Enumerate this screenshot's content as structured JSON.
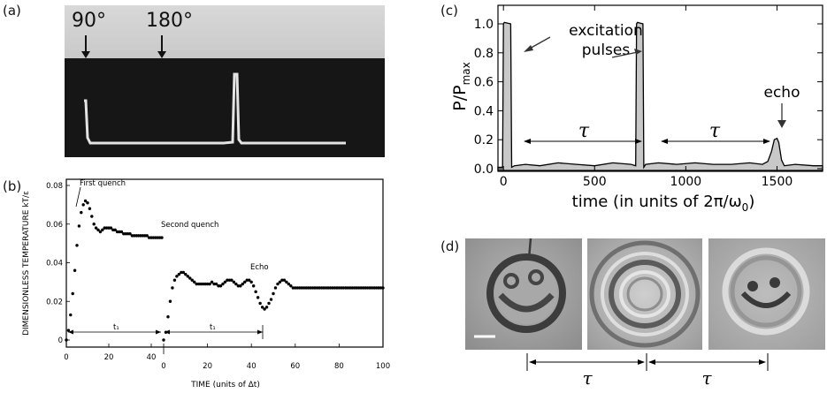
{
  "panels": {
    "a": {
      "label": "(a)",
      "pulse1": "90°",
      "pulse2": "180°"
    },
    "b": {
      "label": "(b)",
      "ylabel": "DIMENSIONLESS TEMPERATURE kT/ε",
      "xlabel": "TIME (units of Δt)",
      "ann_first": "First quench",
      "ann_second": "Second quench",
      "ann_echo": "Echo",
      "t1": "t₁",
      "left_xticks": [
        "0",
        "20",
        "40"
      ],
      "right_xticks": [
        "0",
        "20",
        "40",
        "60",
        "80",
        "100"
      ],
      "yticks": [
        "0",
        "0.02",
        "0.04",
        "0.06",
        "0.08"
      ]
    },
    "c": {
      "label": "(c)",
      "ylabel_main": "P/P",
      "ylabel_sub": "max",
      "xlabel": "time (in units of 2π/ω",
      "xlabel_sub": "0",
      "xlabel_end": ")",
      "ann_excitation_1": "excitation",
      "ann_excitation_2": "pulses",
      "ann_echo": "echo",
      "tau": "τ",
      "xticks": [
        "0",
        "500",
        "1000",
        "1500"
      ],
      "yticks": [
        "0.0",
        "0.2",
        "0.4",
        "0.6",
        "0.8",
        "1.0"
      ]
    },
    "d": {
      "label": "(d)",
      "tau": "τ"
    }
  },
  "chart_data": [
    {
      "type": "scatter",
      "panel": "b",
      "xlabel": "TIME (units of Δt)",
      "ylabel": "DIMENSIONLESS TEMPERATURE kT/ε",
      "ylim": [
        0,
        0.08
      ],
      "series": [
        {
          "x": [
            0,
            1,
            2,
            3,
            4,
            5,
            6,
            7,
            8,
            9,
            10,
            11,
            12,
            13,
            14,
            15,
            16,
            17,
            18,
            19,
            20,
            21,
            22,
            23,
            24,
            25,
            26,
            27,
            28,
            29,
            30,
            31,
            32,
            33,
            34,
            35,
            36,
            37,
            38,
            39,
            40,
            41,
            42,
            43,
            44,
            45
          ],
          "values": [
            0.0,
            0.005,
            0.013,
            0.024,
            0.036,
            0.049,
            0.059,
            0.066,
            0.07,
            0.072,
            0.071,
            0.068,
            0.064,
            0.06,
            0.058,
            0.057,
            0.056,
            0.057,
            0.058,
            0.058,
            0.058,
            0.058,
            0.057,
            0.057,
            0.056,
            0.056,
            0.056,
            0.055,
            0.055,
            0.055,
            0.055,
            0.054,
            0.054,
            0.054,
            0.054,
            0.054,
            0.054,
            0.054,
            0.054,
            0.053,
            0.053,
            0.053,
            0.053,
            0.053,
            0.053,
            0.053
          ]
        },
        {
          "x": [
            0,
            1,
            2,
            3,
            4,
            5,
            6,
            7,
            8,
            9,
            10,
            11,
            12,
            13,
            14,
            15,
            16,
            17,
            18,
            19,
            20,
            21,
            22,
            23,
            24,
            25,
            26,
            27,
            28,
            29,
            30,
            31,
            32,
            33,
            34,
            35,
            36,
            37,
            38,
            39,
            40,
            41,
            42,
            43,
            44,
            45,
            46,
            47,
            48,
            49,
            50,
            51,
            52,
            53,
            54,
            55,
            56,
            57,
            58,
            59,
            60,
            61,
            62,
            63,
            64,
            65,
            66,
            67,
            68,
            69,
            70,
            71,
            72,
            73,
            74,
            75,
            76,
            77,
            78,
            79,
            80,
            81,
            82,
            83,
            84,
            85,
            86,
            87,
            88,
            89,
            90,
            91,
            92,
            93,
            94,
            95,
            96,
            97,
            98,
            99,
            100
          ],
          "values": [
            0.0,
            0.004,
            0.012,
            0.02,
            0.027,
            0.031,
            0.033,
            0.034,
            0.035,
            0.035,
            0.034,
            0.033,
            0.032,
            0.031,
            0.03,
            0.029,
            0.029,
            0.029,
            0.029,
            0.029,
            0.029,
            0.029,
            0.03,
            0.029,
            0.029,
            0.028,
            0.028,
            0.029,
            0.03,
            0.031,
            0.031,
            0.031,
            0.03,
            0.029,
            0.028,
            0.028,
            0.029,
            0.03,
            0.031,
            0.031,
            0.03,
            0.028,
            0.025,
            0.022,
            0.019,
            0.017,
            0.016,
            0.017,
            0.019,
            0.021,
            0.024,
            0.027,
            0.029,
            0.03,
            0.031,
            0.031,
            0.03,
            0.029,
            0.028,
            0.027,
            0.027,
            0.027,
            0.027,
            0.027,
            0.027,
            0.027,
            0.027,
            0.027,
            0.027,
            0.027,
            0.027,
            0.027,
            0.027,
            0.027,
            0.027,
            0.027,
            0.027,
            0.027,
            0.027,
            0.027,
            0.027,
            0.027,
            0.027,
            0.027,
            0.027,
            0.027,
            0.027,
            0.027,
            0.027,
            0.027,
            0.027,
            0.027,
            0.027,
            0.027,
            0.027,
            0.027,
            0.027,
            0.027,
            0.027,
            0.027,
            0.027
          ]
        }
      ]
    },
    {
      "type": "area",
      "panel": "c",
      "xlabel": "time (in units of 2π/ω0)",
      "ylabel": "P/Pmax",
      "xlim": [
        -30,
        1750
      ],
      "ylim": [
        0,
        1.05
      ],
      "x": [
        -30,
        -5,
        0,
        5,
        40,
        45,
        60,
        120,
        200,
        300,
        400,
        500,
        600,
        700,
        725,
        730,
        735,
        765,
        770,
        780,
        850,
        950,
        1050,
        1150,
        1250,
        1350,
        1420,
        1450,
        1470,
        1485,
        1500,
        1510,
        1525,
        1540,
        1600,
        1700,
        1750
      ],
      "values": [
        0.01,
        0.01,
        1.0,
        1.01,
        1.0,
        0.01,
        0.02,
        0.03,
        0.02,
        0.04,
        0.03,
        0.02,
        0.04,
        0.03,
        0.02,
        1.0,
        1.01,
        1.0,
        0.01,
        0.03,
        0.04,
        0.03,
        0.04,
        0.03,
        0.03,
        0.04,
        0.03,
        0.05,
        0.12,
        0.2,
        0.21,
        0.18,
        0.06,
        0.02,
        0.03,
        0.02,
        0.02
      ]
    }
  ]
}
